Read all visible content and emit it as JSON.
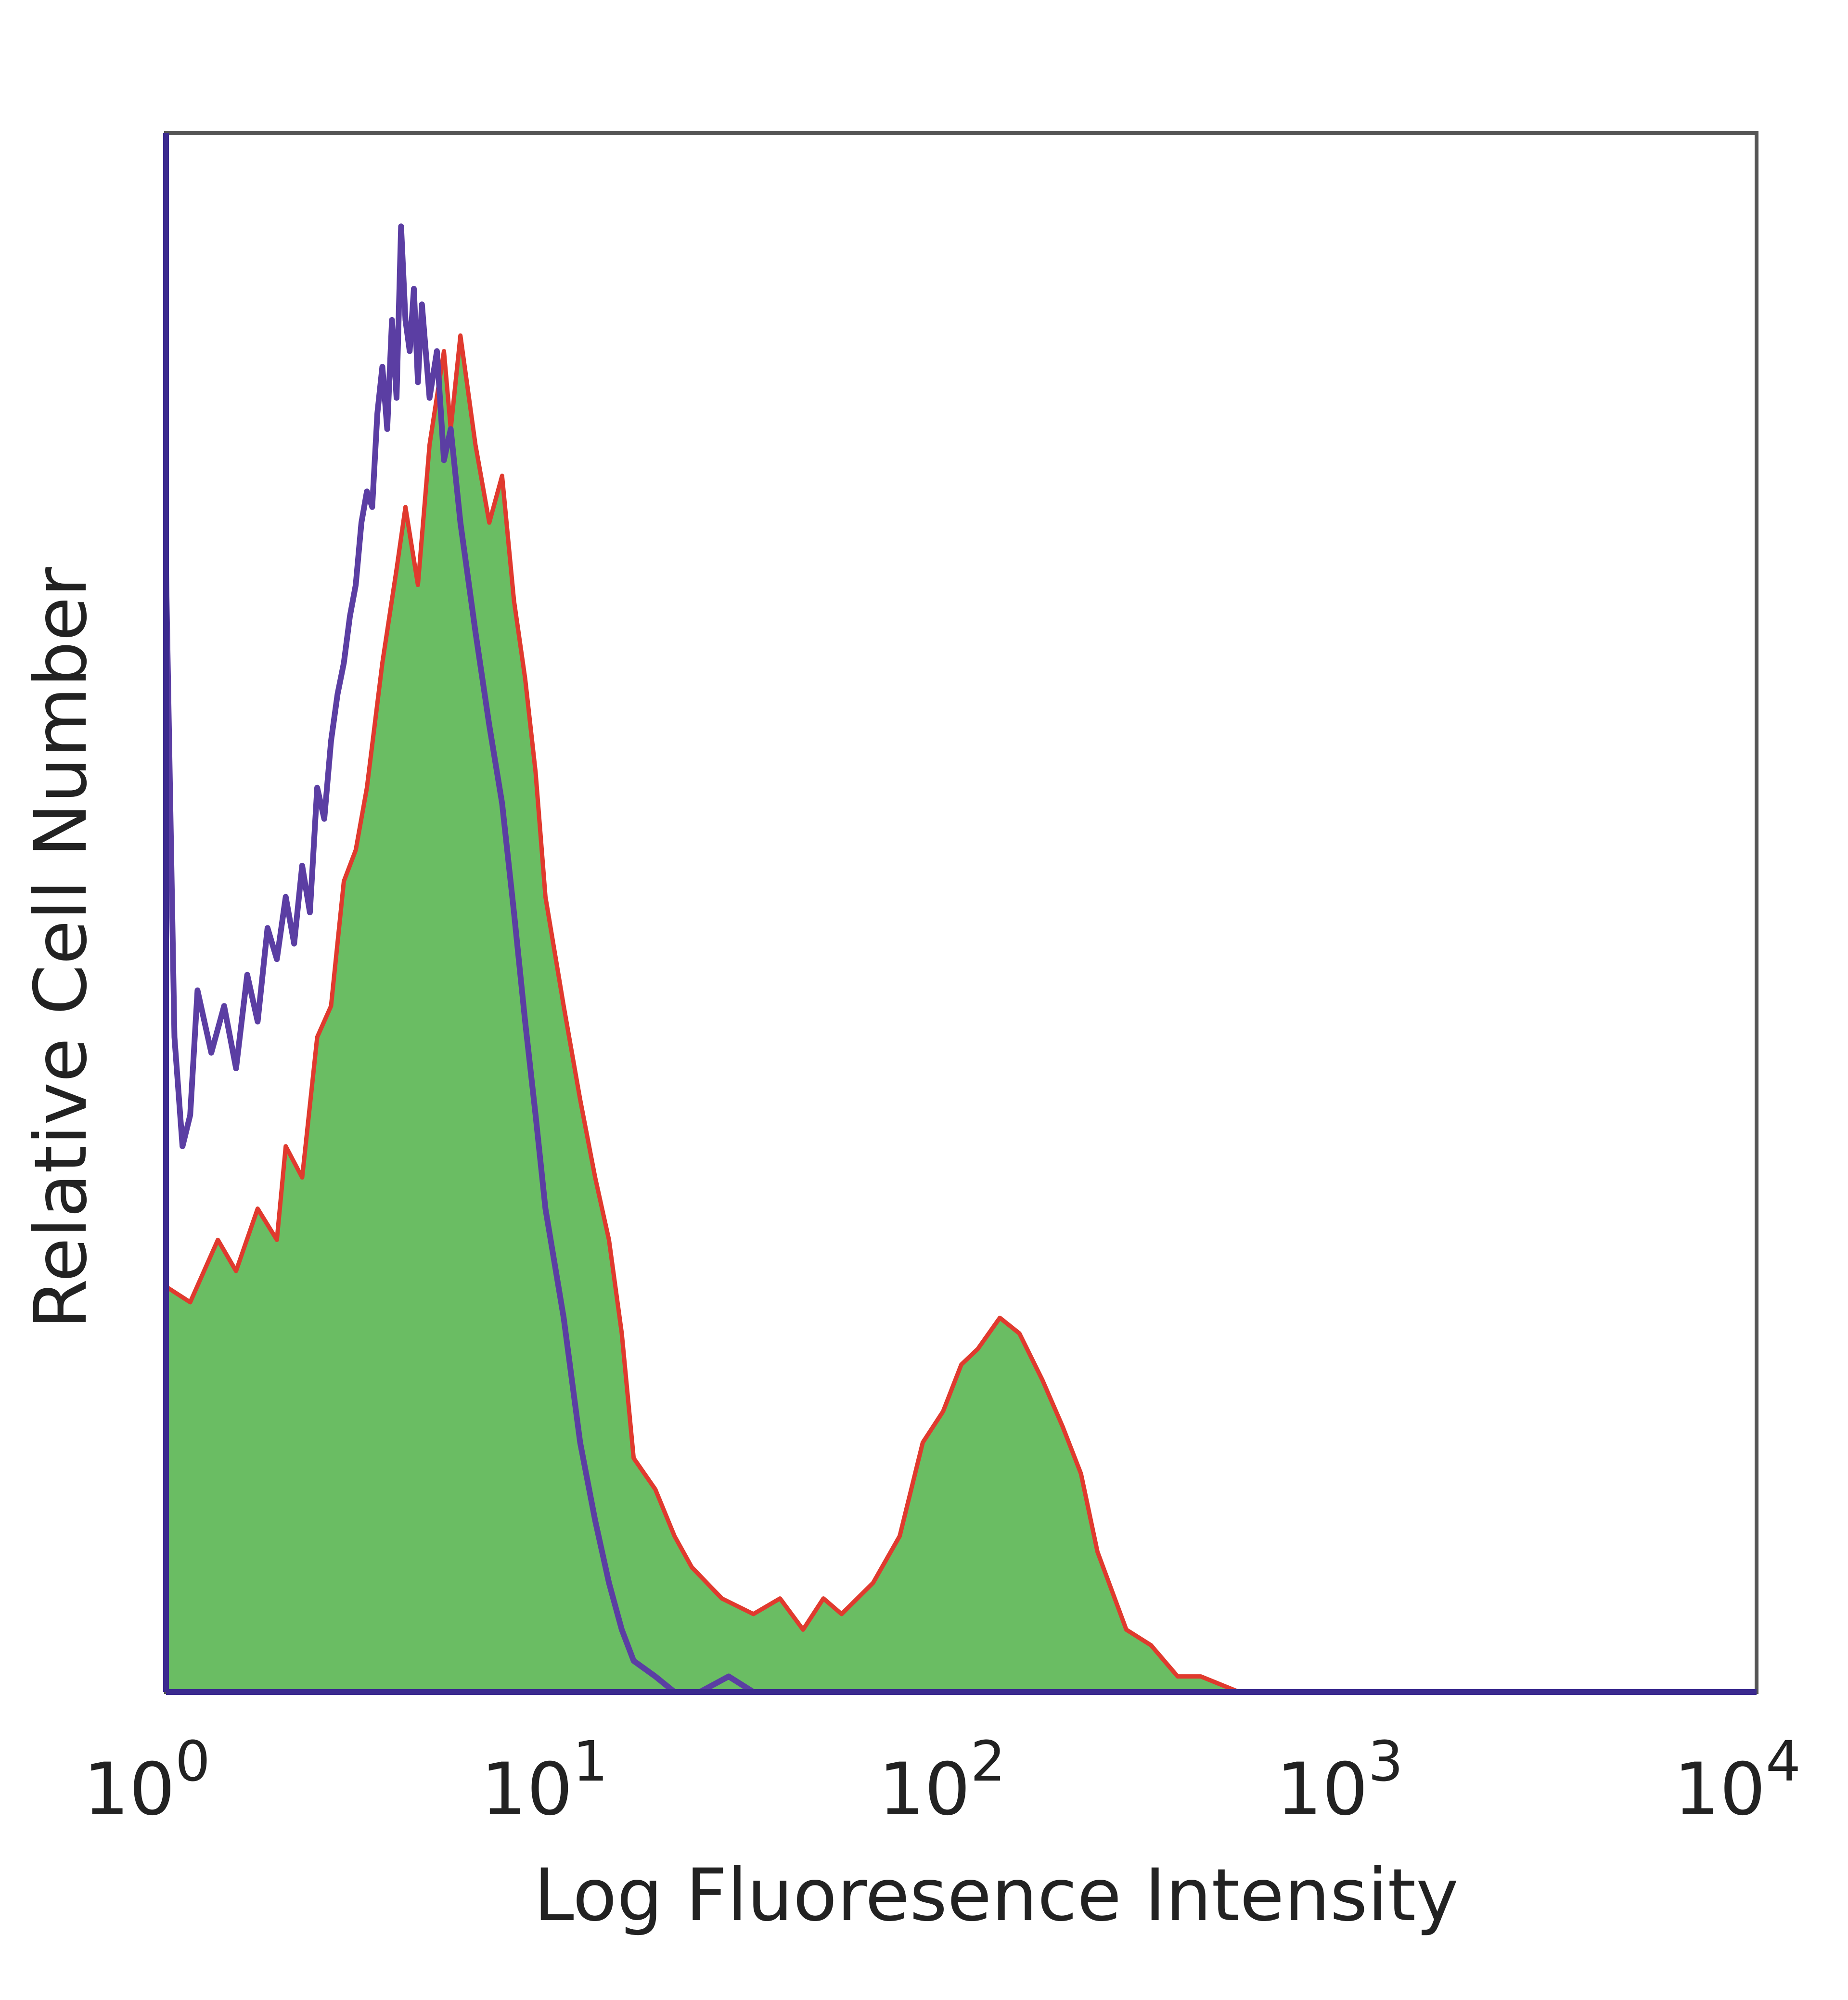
{
  "chart_data": {
    "type": "area",
    "xlabel": "Log Fluoresence Intensity",
    "ylabel": "Relative Cell Number",
    "x_scale": "log",
    "xlim": [
      1,
      10000
    ],
    "ylim": [
      0,
      1
    ],
    "grid": false,
    "x_ticks": [
      {
        "value": 1,
        "base": "10",
        "exp": "0"
      },
      {
        "value": 10,
        "base": "10",
        "exp": "1"
      },
      {
        "value": 100,
        "base": "10",
        "exp": "2"
      },
      {
        "value": 1000,
        "base": "10",
        "exp": "3"
      },
      {
        "value": 10000,
        "base": "10",
        "exp": "4"
      }
    ],
    "series": [
      {
        "role": "filled-histogram",
        "fill": "#6abd63",
        "outline": "#e03a2e",
        "x": [
          1.0,
          1.15,
          1.35,
          1.5,
          1.7,
          1.9,
          2.0,
          2.2,
          2.4,
          2.6,
          2.8,
          3.0,
          3.2,
          3.5,
          3.8,
          4.0,
          4.3,
          4.6,
          5.0,
          5.2,
          5.5,
          6.0,
          6.5,
          7.0,
          7.5,
          8.0,
          8.5,
          9.0,
          10.0,
          11.0,
          12.0,
          13.0,
          14.0,
          15.0,
          17.0,
          19.0,
          21.0,
          25.0,
          30.0,
          35.0,
          40.0,
          45.0,
          50.0,
          60.0,
          70.0,
          80.0,
          90.0,
          100.0,
          110.0,
          125.0,
          140.0,
          160.0,
          180.0,
          200.0,
          220.0,
          260.0,
          300.0,
          350.0,
          400.0,
          500.0,
          600.0,
          700.0
        ],
        "y": [
          0.26,
          0.25,
          0.29,
          0.27,
          0.31,
          0.29,
          0.35,
          0.33,
          0.42,
          0.44,
          0.52,
          0.54,
          0.58,
          0.66,
          0.72,
          0.76,
          0.71,
          0.8,
          0.86,
          0.81,
          0.87,
          0.8,
          0.75,
          0.78,
          0.7,
          0.65,
          0.59,
          0.51,
          0.44,
          0.38,
          0.33,
          0.29,
          0.23,
          0.15,
          0.13,
          0.1,
          0.08,
          0.06,
          0.05,
          0.06,
          0.04,
          0.06,
          0.05,
          0.07,
          0.1,
          0.16,
          0.18,
          0.21,
          0.22,
          0.24,
          0.23,
          0.2,
          0.17,
          0.14,
          0.09,
          0.04,
          0.03,
          0.01,
          0.01,
          0.0,
          0.0,
          0.0
        ]
      },
      {
        "role": "control-outline",
        "color": "#5b3ea3",
        "x": [
          1.0,
          1.05,
          1.1,
          1.15,
          1.2,
          1.3,
          1.4,
          1.5,
          1.6,
          1.7,
          1.8,
          1.9,
          2.0,
          2.1,
          2.2,
          2.3,
          2.4,
          2.5,
          2.6,
          2.7,
          2.8,
          2.9,
          3.0,
          3.1,
          3.2,
          3.3,
          3.4,
          3.5,
          3.6,
          3.7,
          3.8,
          3.9,
          4.0,
          4.1,
          4.2,
          4.3,
          4.4,
          4.6,
          4.8,
          5.0,
          5.2,
          5.5,
          6.0,
          6.5,
          7.0,
          7.5,
          8.0,
          8.5,
          9.0,
          10.0,
          11.0,
          12.0,
          13.0,
          14.0,
          15.0,
          17.0,
          19.0,
          22.0,
          26.0,
          30.0
        ],
        "y": [
          0.72,
          0.42,
          0.35,
          0.37,
          0.45,
          0.41,
          0.44,
          0.4,
          0.46,
          0.43,
          0.49,
          0.47,
          0.51,
          0.48,
          0.53,
          0.5,
          0.58,
          0.56,
          0.61,
          0.64,
          0.66,
          0.69,
          0.71,
          0.75,
          0.77,
          0.76,
          0.82,
          0.85,
          0.81,
          0.88,
          0.83,
          0.94,
          0.88,
          0.86,
          0.9,
          0.84,
          0.89,
          0.83,
          0.86,
          0.79,
          0.81,
          0.75,
          0.68,
          0.62,
          0.57,
          0.5,
          0.43,
          0.37,
          0.31,
          0.24,
          0.16,
          0.11,
          0.07,
          0.04,
          0.02,
          0.01,
          0.0,
          0.0,
          0.01,
          0.0
        ]
      }
    ]
  }
}
